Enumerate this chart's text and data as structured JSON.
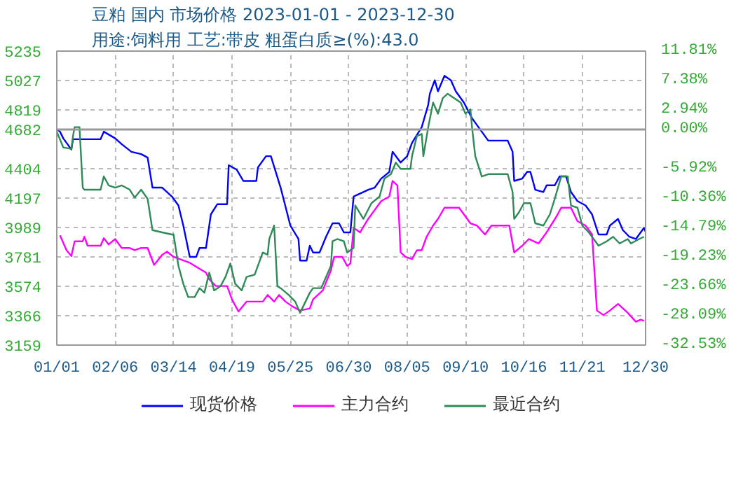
{
  "chart_data": {
    "type": "line",
    "title": "豆粕 国内 市场价格 2023-01-01 - 2023-12-30",
    "subtitle": "用途:饲料用 工艺:带皮 粗蛋白质≥(%):43.0",
    "xlim": [
      "2023-01-01",
      "2023-12-30"
    ],
    "xticks": [
      {
        "value": "2023-01-01",
        "label": "01/01"
      },
      {
        "value": "2023-02-06",
        "label": "02/06"
      },
      {
        "value": "2023-03-14",
        "label": "03/14"
      },
      {
        "value": "2023-04-19",
        "label": "04/19"
      },
      {
        "value": "2023-05-25",
        "label": "05/25"
      },
      {
        "value": "2023-06-30",
        "label": "06/30"
      },
      {
        "value": "2023-08-05",
        "label": "08/05"
      },
      {
        "value": "2023-09-10",
        "label": "09/10"
      },
      {
        "value": "2023-10-16",
        "label": "10/16"
      },
      {
        "value": "2023-11-21",
        "label": "11/21"
      },
      {
        "value": "2023-12-30",
        "label": "12/30"
      }
    ],
    "ylim": [
      3159,
      5235
    ],
    "yticks": [
      3159,
      3366,
      3574,
      3781,
      3989,
      4197,
      4404,
      4682,
      4819,
      5027,
      5235
    ],
    "y2lim": [
      -32.53,
      11.81
    ],
    "y2ticks": [
      {
        "value": -32.53,
        "label": "-32.53%"
      },
      {
        "value": -28.09,
        "label": "-28.09%"
      },
      {
        "value": -23.66,
        "label": "-23.66%"
      },
      {
        "value": -19.23,
        "label": "-19.23%"
      },
      {
        "value": -14.79,
        "label": "-14.79%"
      },
      {
        "value": -10.36,
        "label": "-10.36%"
      },
      {
        "value": -5.92,
        "label": "-5.92%"
      },
      {
        "value": 0,
        "label": "0.00%"
      },
      {
        "value": 2.94,
        "label": "2.94%"
      },
      {
        "value": 7.38,
        "label": "7.38%"
      },
      {
        "value": 11.81,
        "label": "11.81%"
      }
    ],
    "ref_lines": [
      {
        "axis": "y",
        "value": 4682,
        "color": "#999999",
        "line_style": "solid"
      }
    ],
    "grid": true,
    "legend": "bottom",
    "marker": "none",
    "line_style": "solid",
    "series": [
      {
        "name": "现货价格",
        "color": "#0000ff",
        "x": [
          "2023-01-01",
          "2023-01-03",
          "2023-01-05",
          "2023-01-10",
          "2023-01-11",
          "2023-01-28",
          "2023-01-30",
          "2023-02-06",
          "2023-02-10",
          "2023-02-16",
          "2023-02-22",
          "2023-02-26",
          "2023-03-01",
          "2023-03-07",
          "2023-03-13",
          "2023-03-17",
          "2023-03-20",
          "2023-03-24",
          "2023-03-28",
          "2023-03-30",
          "2023-04-03",
          "2023-04-06",
          "2023-04-10",
          "2023-04-16",
          "2023-04-17",
          "2023-04-22",
          "2023-04-26",
          "2023-05-04",
          "2023-05-05",
          "2023-05-10",
          "2023-05-13",
          "2023-05-19",
          "2023-05-25",
          "2023-05-30",
          "2023-05-31",
          "2023-06-04",
          "2023-06-06",
          "2023-06-08",
          "2023-06-12",
          "2023-06-16",
          "2023-06-20",
          "2023-06-24",
          "2023-06-27",
          "2023-07-01",
          "2023-07-03",
          "2023-07-12",
          "2023-07-16",
          "2023-07-20",
          "2023-07-25",
          "2023-07-27",
          "2023-08-01",
          "2023-08-05",
          "2023-08-08",
          "2023-08-14",
          "2023-08-18",
          "2023-08-19",
          "2023-08-22",
          "2023-08-24",
          "2023-08-28",
          "2023-09-01",
          "2023-09-04",
          "2023-09-09",
          "2023-09-14",
          "2023-09-20",
          "2023-09-24",
          "2023-10-06",
          "2023-10-09",
          "2023-10-10",
          "2023-10-15",
          "2023-10-18",
          "2023-10-20",
          "2023-10-23",
          "2023-10-28",
          "2023-10-30",
          "2023-11-04",
          "2023-11-07",
          "2023-11-11",
          "2023-11-14",
          "2023-11-18",
          "2023-11-23",
          "2023-11-27",
          "2023-12-01",
          "2023-12-06",
          "2023-12-08",
          "2023-12-13",
          "2023-12-16",
          "2023-12-20",
          "2023-12-24",
          "2023-12-29",
          "2023-12-30"
        ],
        "values": [
          4682,
          4666,
          4619,
          4540,
          4613,
          4613,
          4666,
          4619,
          4578,
          4524,
          4508,
          4483,
          4271,
          4271,
          4208,
          4145,
          4003,
          3782,
          3782,
          3845,
          3845,
          4082,
          4154,
          4154,
          4429,
          4397,
          4318,
          4318,
          4413,
          4493,
          4493,
          4271,
          4003,
          3908,
          3756,
          3756,
          3861,
          3813,
          3813,
          3924,
          4019,
          4019,
          3955,
          3955,
          4208,
          4256,
          4271,
          4335,
          4382,
          4524,
          4448,
          4493,
          4587,
          4698,
          4856,
          4934,
          5029,
          4951,
          5061,
          5029,
          4951,
          4872,
          4761,
          4666,
          4603,
          4603,
          4524,
          4318,
          4335,
          4382,
          4382,
          4256,
          4240,
          4287,
          4287,
          4350,
          4350,
          4240,
          4176,
          4145,
          4082,
          3940,
          3940,
          4003,
          4050,
          3971,
          3924,
          3908,
          3987,
          3960
        ]
      },
      {
        "name": "主力合约",
        "color": "#ff00ff",
        "x": [
          "2023-01-03",
          "2023-01-07",
          "2023-01-10",
          "2023-01-12",
          "2023-01-17",
          "2023-01-18",
          "2023-01-20",
          "2023-01-28",
          "2023-01-30",
          "2023-02-02",
          "2023-02-06",
          "2023-02-10",
          "2023-02-15",
          "2023-02-18",
          "2023-02-22",
          "2023-02-26",
          "2023-03-02",
          "2023-03-07",
          "2023-03-10",
          "2023-03-14",
          "2023-03-24",
          "2023-04-03",
          "2023-04-05",
          "2023-04-09",
          "2023-04-16",
          "2023-04-19",
          "2023-04-23",
          "2023-04-28",
          "2023-05-08",
          "2023-05-11",
          "2023-05-15",
          "2023-05-18",
          "2023-05-22",
          "2023-05-26",
          "2023-05-31",
          "2023-06-06",
          "2023-06-08",
          "2023-06-14",
          "2023-06-19",
          "2023-06-21",
          "2023-06-26",
          "2023-06-29",
          "2023-07-01",
          "2023-07-03",
          "2023-07-07",
          "2023-07-12",
          "2023-07-16",
          "2023-07-20",
          "2023-07-25",
          "2023-07-27",
          "2023-07-30",
          "2023-08-01",
          "2023-08-04",
          "2023-08-08",
          "2023-08-11",
          "2023-08-14",
          "2023-08-17",
          "2023-08-21",
          "2023-08-24",
          "2023-08-28",
          "2023-09-01",
          "2023-09-06",
          "2023-09-09",
          "2023-09-13",
          "2023-09-17",
          "2023-09-22",
          "2023-09-26",
          "2023-10-07",
          "2023-10-10",
          "2023-10-15",
          "2023-10-19",
          "2023-10-25",
          "2023-10-30",
          "2023-11-05",
          "2023-11-08",
          "2023-11-14",
          "2023-11-18",
          "2023-11-23",
          "2023-11-27",
          "2023-11-30",
          "2023-12-04",
          "2023-12-08",
          "2023-12-13",
          "2023-12-19",
          "2023-12-24",
          "2023-12-27",
          "2023-12-29"
        ],
        "values": [
          3934,
          3829,
          3788,
          3892,
          3892,
          3924,
          3861,
          3861,
          3914,
          3870,
          3908,
          3845,
          3845,
          3829,
          3845,
          3845,
          3725,
          3797,
          3819,
          3782,
          3740,
          3671,
          3624,
          3576,
          3576,
          3482,
          3396,
          3466,
          3466,
          3513,
          3466,
          3513,
          3466,
          3434,
          3403,
          3418,
          3482,
          3545,
          3687,
          3782,
          3782,
          3719,
          3735,
          3987,
          3955,
          4050,
          4113,
          4176,
          4208,
          4318,
          4287,
          3813,
          3782,
          3766,
          3829,
          3829,
          3924,
          4003,
          4050,
          4129,
          4129,
          4129,
          4082,
          4019,
          4003,
          3940,
          4003,
          4003,
          3813,
          3861,
          3908,
          3877,
          3955,
          4066,
          4129,
          4129,
          4034,
          4003,
          3940,
          3403,
          3371,
          3403,
          3450,
          3387,
          3324,
          3339,
          3330
        ]
      },
      {
        "name": "最近合约",
        "color": "#2e8b57",
        "x": [
          "2023-01-01",
          "2023-01-05",
          "2023-01-10",
          "2023-01-11",
          "2023-01-12",
          "2023-01-15",
          "2023-01-17",
          "2023-01-18",
          "2023-01-28",
          "2023-01-30",
          "2023-02-02",
          "2023-02-06",
          "2023-02-10",
          "2023-02-15",
          "2023-02-18",
          "2023-02-22",
          "2023-02-26",
          "2023-03-01",
          "2023-03-07",
          "2023-03-13",
          "2023-03-14",
          "2023-03-17",
          "2023-03-20",
          "2023-03-23",
          "2023-03-27",
          "2023-03-30",
          "2023-04-02",
          "2023-04-05",
          "2023-04-08",
          "2023-04-12",
          "2023-04-15",
          "2023-04-18",
          "2023-04-21",
          "2023-04-25",
          "2023-04-28",
          "2023-05-03",
          "2023-05-08",
          "2023-05-11",
          "2023-05-12",
          "2023-05-15",
          "2023-05-17",
          "2023-05-19",
          "2023-05-24",
          "2023-05-28",
          "2023-05-31",
          "2023-06-06",
          "2023-06-08",
          "2023-06-13",
          "2023-06-19",
          "2023-06-20",
          "2023-06-23",
          "2023-06-27",
          "2023-06-29",
          "2023-07-01",
          "2023-07-03",
          "2023-07-04",
          "2023-07-09",
          "2023-07-14",
          "2023-07-19",
          "2023-07-22",
          "2023-07-26",
          "2023-07-29",
          "2023-08-01",
          "2023-08-07",
          "2023-08-08",
          "2023-08-11",
          "2023-08-14",
          "2023-08-15",
          "2023-08-18",
          "2023-08-21",
          "2023-08-24",
          "2023-08-27",
          "2023-08-30",
          "2023-09-03",
          "2023-09-07",
          "2023-09-10",
          "2023-09-13",
          "2023-09-14",
          "2023-09-16",
          "2023-09-20",
          "2023-09-24",
          "2023-10-06",
          "2023-10-09",
          "2023-10-10",
          "2023-10-13",
          "2023-10-16",
          "2023-10-20",
          "2023-10-23",
          "2023-10-28",
          "2023-11-01",
          "2023-11-04",
          "2023-11-08",
          "2023-11-12",
          "2023-11-14",
          "2023-11-18",
          "2023-11-21",
          "2023-11-25",
          "2023-11-28",
          "2023-12-01",
          "2023-12-06",
          "2023-12-10",
          "2023-12-14",
          "2023-12-19",
          "2023-12-21",
          "2023-12-26",
          "2023-12-29"
        ],
        "values": [
          4666,
          4555,
          4545,
          4635,
          4698,
          4698,
          4271,
          4256,
          4256,
          4350,
          4287,
          4271,
          4287,
          4256,
          4201,
          4256,
          4192,
          3971,
          3955,
          3940,
          3940,
          3719,
          3592,
          3498,
          3498,
          3561,
          3529,
          3671,
          3545,
          3576,
          3640,
          3735,
          3592,
          3545,
          3640,
          3656,
          3813,
          3797,
          3908,
          4003,
          3576,
          3561,
          3513,
          3466,
          3387,
          3529,
          3561,
          3561,
          3719,
          3892,
          3908,
          3892,
          3813,
          3829,
          3845,
          4145,
          4050,
          4161,
          4208,
          4335,
          4366,
          4448,
          4403,
          4403,
          4493,
          4635,
          4650,
          4493,
          4698,
          4872,
          4793,
          4903,
          4934,
          4903,
          4872,
          4793,
          4824,
          4698,
          4493,
          4350,
          4366,
          4366,
          4240,
          4050,
          4098,
          4161,
          4161,
          4019,
          4003,
          4082,
          4192,
          4350,
          4350,
          4145,
          4129,
          4003,
          3955,
          3908,
          3861,
          3892,
          3924,
          3877,
          3908,
          3877,
          3908,
          3924
        ]
      }
    ]
  }
}
